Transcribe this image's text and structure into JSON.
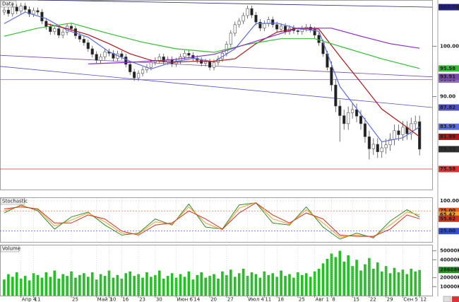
{
  "chart_data": [
    {
      "type": "candlestick",
      "title": "Data",
      "xlim": [
        -1,
        102
      ],
      "ylim": [
        71.5,
        109.2
      ],
      "yticks": [
        {
          "value": 100,
          "label": "100.00"
        },
        {
          "value": 90,
          "label": "90.00"
        }
      ],
      "candle_color": "#505050",
      "up_fill": "#ffffff",
      "down_fill": "#202020",
      "last_label_color": "#303030",
      "open": [
        106.8,
        107.2,
        106.5,
        107.8,
        107.0,
        108.0,
        107.3,
        106.4,
        107.1,
        106.8,
        105.0,
        103.9,
        102.9,
        103.5,
        102.2,
        102.8,
        104.0,
        103.5,
        102.1,
        101.4,
        100.7,
        99.5,
        98.4,
        97.2,
        97.9,
        98.9,
        98.6,
        97.6,
        98.5,
        97.9,
        96.4,
        94.9,
        93.7,
        94.6,
        95.3,
        95.8,
        96.8,
        97.2,
        97.9,
        96.9,
        97.4,
        96.5,
        97.1,
        97.9,
        98.6,
        98.2,
        97.6,
        97.2,
        96.6,
        96.9,
        95.8,
        96.8,
        97.5,
        98.6,
        100.4,
        102.6,
        104.3,
        105.0,
        106.1,
        107.5,
        106.2,
        104.8,
        103.6,
        104.5,
        105.3,
        104.3,
        103.4,
        104.0,
        102.9,
        103.6,
        103.1,
        102.9,
        103.5,
        103.8,
        103.3,
        102.2,
        100.7,
        98.5,
        95.8,
        92.3,
        88.1,
        86.2,
        84.6,
        86.8,
        87.4,
        86.1,
        84.6,
        82.0,
        79.6,
        80.5,
        79.0,
        79.8,
        80.4,
        81.5,
        83.2,
        82.4,
        83.9,
        82.6,
        84.6,
        85.0
      ],
      "high": [
        107.8,
        107.8,
        108.4,
        108.4,
        108.6,
        108.6,
        107.9,
        107.7,
        107.7,
        107.4,
        105.6,
        104.5,
        104.1,
        104.1,
        103.4,
        104.6,
        104.6,
        104.1,
        102.7,
        102.0,
        101.3,
        100.1,
        99.0,
        98.5,
        99.5,
        99.5,
        99.2,
        99.1,
        99.1,
        98.5,
        97.0,
        95.5,
        95.2,
        95.9,
        96.4,
        97.4,
        97.8,
        98.5,
        98.5,
        98.0,
        98.0,
        97.7,
        98.5,
        99.2,
        99.2,
        98.8,
        98.2,
        97.8,
        97.5,
        97.5,
        97.4,
        98.1,
        99.2,
        101.0,
        103.2,
        104.9,
        105.6,
        106.7,
        108.1,
        108.1,
        106.8,
        105.4,
        105.1,
        105.9,
        105.9,
        104.9,
        104.6,
        104.6,
        104.2,
        104.2,
        103.7,
        104.1,
        104.4,
        104.4,
        103.9,
        102.8,
        101.3,
        99.1,
        97.0,
        93.5,
        89.3,
        87.4,
        88.0,
        88.6,
        88.6,
        87.3,
        85.8,
        83.2,
        81.7,
        81.7,
        81.0,
        81.6,
        82.7,
        84.4,
        84.4,
        85.1,
        85.1,
        85.8,
        86.2,
        86.2
      ],
      "low": [
        106.2,
        105.9,
        105.9,
        106.4,
        106.4,
        106.7,
        105.8,
        105.8,
        106.2,
        104.4,
        103.3,
        102.3,
        102.3,
        101.6,
        101.6,
        102.2,
        102.9,
        101.5,
        100.8,
        100.1,
        98.9,
        97.8,
        96.6,
        96.6,
        97.3,
        98.0,
        97.0,
        97.0,
        97.3,
        95.8,
        94.3,
        93.1,
        93.1,
        94.0,
        94.7,
        95.2,
        96.2,
        96.6,
        96.3,
        96.3,
        95.9,
        95.9,
        96.5,
        97.3,
        97.6,
        97.0,
        96.6,
        96.0,
        96.0,
        95.2,
        95.2,
        96.2,
        96.9,
        98.0,
        99.8,
        102.0,
        103.7,
        104.4,
        105.5,
        105.6,
        104.2,
        103.0,
        103.0,
        103.9,
        103.7,
        102.8,
        102.8,
        102.3,
        102.3,
        102.5,
        102.3,
        102.3,
        102.9,
        102.7,
        101.6,
        100.1,
        97.9,
        95.2,
        91.1,
        86.9,
        81.0,
        83.4,
        83.4,
        85.6,
        84.9,
        83.4,
        80.8,
        77.5,
        78.4,
        77.8,
        77.8,
        78.6,
        79.2,
        80.3,
        81.2,
        81.2,
        81.4,
        81.4,
        83.4,
        78.3
      ],
      "close": [
        107.2,
        106.5,
        107.8,
        107.0,
        108.0,
        107.3,
        106.4,
        107.1,
        106.8,
        105.0,
        103.9,
        102.9,
        103.5,
        102.2,
        102.8,
        104.0,
        103.5,
        102.1,
        101.4,
        100.7,
        99.5,
        98.4,
        97.2,
        97.9,
        98.9,
        98.6,
        97.6,
        98.5,
        97.9,
        96.4,
        94.9,
        93.7,
        94.6,
        95.3,
        95.8,
        96.8,
        97.2,
        97.9,
        96.9,
        97.4,
        96.5,
        97.1,
        97.9,
        98.6,
        98.2,
        97.6,
        97.2,
        96.6,
        96.9,
        95.8,
        96.8,
        97.5,
        98.6,
        100.4,
        102.6,
        104.3,
        105.0,
        106.1,
        107.5,
        106.2,
        104.8,
        103.6,
        104.5,
        105.3,
        104.3,
        103.4,
        104.0,
        102.9,
        103.6,
        103.1,
        102.9,
        103.5,
        103.8,
        103.3,
        102.2,
        100.7,
        98.5,
        95.8,
        92.3,
        88.1,
        86.2,
        84.6,
        86.8,
        87.4,
        86.1,
        84.6,
        82.0,
        79.6,
        80.5,
        79.0,
        79.8,
        80.4,
        81.5,
        83.2,
        82.4,
        83.9,
        82.6,
        84.6,
        85.0,
        79.53
      ],
      "overlays": [
        {
          "color": "#5a6ee6",
          "labeled": true,
          "x": [
            0,
            5,
            10,
            15,
            20,
            25,
            30,
            35,
            40,
            45,
            50,
            55,
            60,
            65,
            70,
            75,
            80,
            85,
            90,
            95,
            99
          ],
          "values": [
            104.5,
            106.8,
            105.5,
            103.2,
            101.8,
            98.9,
            97.0,
            95.5,
            96.8,
            97.6,
            96.9,
            99.5,
            104.5,
            104.6,
            103.5,
            103.0,
            92.0,
            86.5,
            81.0,
            81.8,
            83.99
          ]
        },
        {
          "color": "#b01818",
          "labeled": true,
          "x": [
            10,
            15,
            20,
            25,
            30,
            35,
            40,
            45,
            50,
            55,
            60,
            65,
            70,
            75,
            80,
            85,
            90,
            95,
            99
          ],
          "values": [
            104.5,
            103.5,
            102.3,
            100.5,
            98.5,
            97.2,
            96.8,
            97.0,
            97.0,
            97.5,
            100.5,
            102.8,
            103.6,
            103.4,
            98.0,
            92.8,
            87.5,
            84.5,
            81.99
          ]
        },
        {
          "color": "#30c030",
          "labeled": true,
          "x": [
            0,
            8,
            16,
            25,
            33,
            41,
            50,
            58,
            66,
            74,
            82,
            90,
            99
          ],
          "values": [
            102.0,
            103.6,
            104.6,
            102.5,
            100.8,
            99.5,
            98.8,
            100.4,
            101.5,
            101.5,
            99.5,
            97.5,
            95.58
          ]
        },
        {
          "color": "#8a2ad0",
          "labeled": false,
          "x": [
            20,
            30,
            40,
            50,
            60,
            70,
            78,
            85,
            92,
            99
          ],
          "values": [
            96.5,
            96.8,
            97.3,
            98.4,
            101.0,
            103.6,
            103.6,
            102.0,
            100.5,
            99.6
          ]
        }
      ],
      "trendlines": [
        {
          "color": "#23237e",
          "x": [
            8,
            102
          ],
          "values": [
            109.2,
            107.78
          ]
        },
        {
          "color": "#7a4aa8",
          "x": [
            -1,
            102
          ],
          "values": [
            98.2,
            93.91
          ]
        },
        {
          "color": "#5050c0",
          "x": [
            -1,
            102
          ],
          "values": [
            96.0,
            87.82
          ]
        }
      ],
      "levels": [
        {
          "value": 75.58,
          "color": "#e03030"
        },
        {
          "value": 93.36,
          "color": "#8a70b8"
        }
      ]
    },
    {
      "type": "line",
      "title": "Stochastic",
      "xlim": [
        -1,
        102
      ],
      "ylim": [
        -1.8,
        107
      ],
      "yticks": [
        {
          "value": 100,
          "label": "100.00",
          "color": "none"
        },
        {
          "value": 75,
          "label": "75.00",
          "color": "#e06020"
        },
        {
          "value": 25,
          "label": "25.00",
          "color": "#3050d0"
        }
      ],
      "series": [
        {
          "color": "#2e8b2e",
          "labeled": false,
          "x": [
            0,
            4,
            8,
            12,
            16,
            20,
            24,
            28,
            32,
            36,
            40,
            44,
            48,
            52,
            56,
            60,
            64,
            68,
            72,
            76,
            80,
            84,
            88,
            92,
            96,
            99
          ],
          "values": [
            70,
            90,
            75,
            30,
            60,
            72,
            40,
            15,
            20,
            55,
            40,
            92,
            35,
            30,
            90,
            95,
            45,
            40,
            85,
            35,
            5,
            20,
            8,
            50,
            78,
            60
          ]
        },
        {
          "color": "#f0a030",
          "labeled": true,
          "x": [
            0,
            4,
            8,
            12,
            16,
            20,
            24,
            28,
            32,
            36,
            40,
            44,
            48,
            52,
            56,
            60,
            64,
            68,
            72,
            76,
            80,
            84,
            88,
            92,
            96,
            99
          ],
          "values": [
            75,
            88,
            78,
            38,
            52,
            70,
            48,
            20,
            18,
            48,
            42,
            85,
            45,
            28,
            82,
            96,
            55,
            42,
            78,
            45,
            10,
            15,
            10,
            40,
            72,
            65.42
          ]
        },
        {
          "color": "#d03020",
          "labeled": true,
          "x": [
            0,
            4,
            8,
            12,
            16,
            20,
            24,
            28,
            32,
            36,
            40,
            44,
            48,
            52,
            56,
            60,
            64,
            68,
            72,
            76,
            80,
            84,
            88,
            92,
            96,
            99
          ],
          "values": [
            80,
            85,
            80,
            45,
            45,
            65,
            55,
            25,
            15,
            40,
            45,
            75,
            55,
            30,
            70,
            95,
            65,
            45,
            70,
            55,
            15,
            12,
            12,
            30,
            65,
            55.62
          ]
        }
      ]
    },
    {
      "type": "bar",
      "title": "Volume",
      "xlim": [
        -1,
        102
      ],
      "ylim": [
        0,
        56000
      ],
      "color": "#22c022",
      "label_color": "#1f9a1f",
      "yticks": [
        {
          "value": 50000,
          "label": "50000K"
        },
        {
          "value": 40000,
          "label": "40000K"
        },
        {
          "value": 20000,
          "label": "20000K"
        },
        {
          "value": 10000,
          "label": "10000K"
        }
      ],
      "values": [
        18000,
        24000,
        21000,
        26000,
        19000,
        22000,
        17000,
        25000,
        23000,
        20000,
        26000,
        21000,
        28000,
        19000,
        24000,
        22000,
        27000,
        20000,
        23000,
        25000,
        21000,
        26000,
        18000,
        24000,
        22000,
        28000,
        20000,
        23000,
        19000,
        25000,
        27000,
        22000,
        24000,
        20000,
        26000,
        21000,
        23000,
        28000,
        19000,
        22000,
        25000,
        20000,
        24000,
        21000,
        27000,
        18000,
        23000,
        26000,
        20000,
        22000,
        24000,
        19000,
        27000,
        23000,
        29000,
        21000,
        25000,
        30000,
        22000,
        26000,
        24000,
        20000,
        27000,
        23000,
        25000,
        21000,
        28000,
        22000,
        24000,
        20000,
        26000,
        23000,
        25000,
        21000,
        27000,
        30000,
        36000,
        41000,
        47000,
        43000,
        50000,
        38000,
        45000,
        33000,
        40000,
        28000,
        35000,
        42000,
        30000,
        37000,
        27000,
        33000,
        25000,
        31000,
        26000,
        29000,
        24000,
        30000,
        27000,
        28608
      ],
      "value_labels": [
        null,
        null,
        null,
        null,
        null,
        null,
        null,
        null,
        null,
        null,
        null,
        null,
        null,
        null,
        null,
        null,
        null,
        null,
        null,
        null,
        null,
        null,
        null,
        null,
        null,
        null,
        null,
        null,
        null,
        null,
        null,
        null,
        null,
        null,
        null,
        null,
        null,
        null,
        null,
        null,
        null,
        null,
        null,
        null,
        null,
        null,
        null,
        null,
        null,
        null,
        null,
        null,
        null,
        null,
        null,
        null,
        null,
        null,
        null,
        null,
        null,
        null,
        null,
        null,
        null,
        null,
        null,
        null,
        null,
        null,
        null,
        null,
        null,
        null,
        null,
        null,
        null,
        null,
        null,
        null,
        null,
        null,
        null,
        null,
        null,
        null,
        null,
        null,
        null,
        null,
        null,
        null,
        null,
        null,
        null,
        null,
        null,
        null,
        null,
        "28608K"
      ],
      "xticks": [
        {
          "value": 4,
          "label": "Апр 4"
        },
        {
          "value": 7,
          "label": "11"
        },
        {
          "value": 16,
          "label": "25"
        },
        {
          "value": 22,
          "label": "Май 3"
        },
        {
          "value": 25,
          "label": "10"
        },
        {
          "value": 28,
          "label": "16"
        },
        {
          "value": 32,
          "label": "23"
        },
        {
          "value": 36,
          "label": "30"
        },
        {
          "value": 41,
          "label": "Июн 6"
        },
        {
          "value": 45,
          "label": "14"
        },
        {
          "value": 49,
          "label": "20"
        },
        {
          "value": 53,
          "label": "27"
        },
        {
          "value": 58,
          "label": "Июл 4"
        },
        {
          "value": 62,
          "label": "11"
        },
        {
          "value": 65,
          "label": "18"
        },
        {
          "value": 70,
          "label": "25"
        },
        {
          "value": 74,
          "label": "Авг 1"
        },
        {
          "value": 78,
          "label": "8"
        },
        {
          "value": 83,
          "label": "15"
        },
        {
          "value": 87,
          "label": "22"
        },
        {
          "value": 91,
          "label": "29"
        },
        {
          "value": 95,
          "label": "Сен 5"
        },
        {
          "value": 99,
          "label": "12"
        }
      ]
    }
  ]
}
